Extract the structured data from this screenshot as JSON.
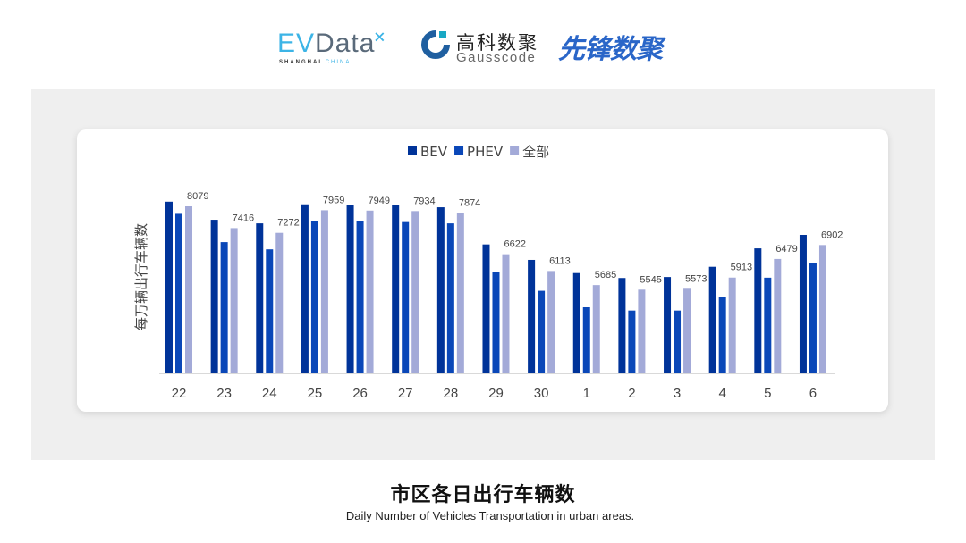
{
  "logos": {
    "evdata": "EVData",
    "evdata_sub_a": "SHANGHAI",
    "evdata_sub_b": "CHINA",
    "gausscode_cn": "高科数聚",
    "gausscode_en": "Gausscode",
    "xianfeng": "先锋数聚"
  },
  "caption": {
    "title": "市区各日出行车辆数",
    "subtitle": "Daily Number of Vehicles Transportation in urban areas."
  },
  "chart_data": {
    "type": "bar",
    "ylabel": "每万辆出行车辆数",
    "xlabel": "",
    "ylim": [
      3000,
      8300
    ],
    "grid": false,
    "legend_position": "top",
    "categories": [
      "22",
      "23",
      "24",
      "25",
      "26",
      "27",
      "28",
      "29",
      "30",
      "1",
      "2",
      "3",
      "4",
      "5",
      "6"
    ],
    "series": [
      {
        "name": "BEV",
        "color": "#003399",
        "values": [
          8220,
          7670,
          7560,
          8140,
          8130,
          8120,
          8050,
          6920,
          6450,
          6050,
          5900,
          5930,
          6240,
          6800,
          7210
        ]
      },
      {
        "name": "PHEV",
        "color": "#0a47b8",
        "values": [
          7850,
          6990,
          6770,
          7630,
          7620,
          7600,
          7560,
          6070,
          5510,
          5010,
          4910,
          4910,
          5310,
          5910,
          6350
        ]
      },
      {
        "name": "全部",
        "color": "#a3aad8",
        "values": [
          8079,
          7416,
          7272,
          7959,
          7949,
          7934,
          7874,
          6622,
          6113,
          5685,
          5545,
          5573,
          5913,
          6479,
          6902
        ],
        "labels": [
          "8079",
          "7416",
          "7272",
          "7959",
          "7949",
          "7934",
          "7874",
          "6622",
          "6113",
          "5685",
          "5545",
          "5573",
          "5913",
          "6479",
          "6902"
        ]
      }
    ]
  }
}
